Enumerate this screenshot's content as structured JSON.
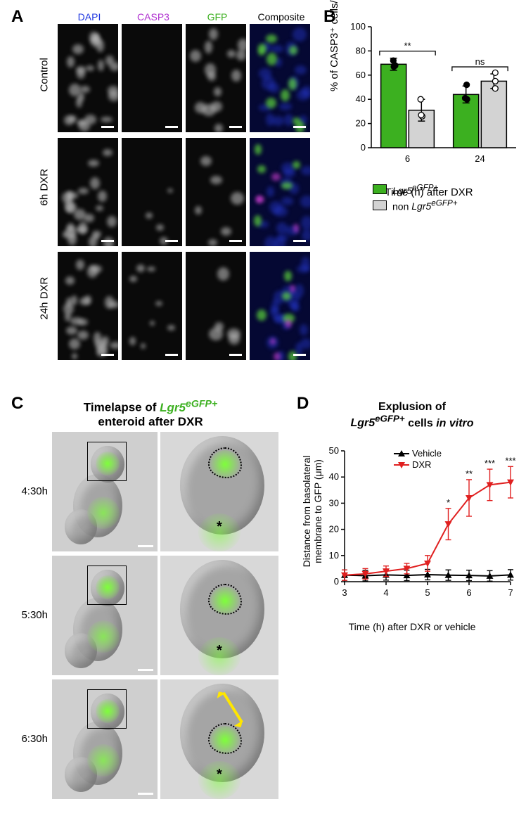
{
  "panelA": {
    "label": "A",
    "col_headers": [
      {
        "text": "DAPI",
        "color": "#2038e0"
      },
      {
        "text": "CASP3",
        "color": "#b030d0"
      },
      {
        "text": "GFP",
        "color": "#3cb020"
      },
      {
        "text": "Composite",
        "color": "#000000"
      }
    ],
    "row_labels": [
      "Control",
      "6h DXR",
      "24h DXR"
    ]
  },
  "panelB": {
    "label": "B",
    "type": "bar",
    "ylabel": "% of CASP3⁺ cells/crypt",
    "xlabel": "Time (h) after DXR",
    "ylim": [
      0,
      100
    ],
    "ytick_step": 20,
    "categories": [
      "6",
      "24"
    ],
    "groups": [
      {
        "name": "Lgr5^eGFP+",
        "display": "Lgr5",
        "italic_sup": "eGFP+",
        "fill": "#3cb020",
        "border": "#000000",
        "values": [
          69,
          44
        ],
        "err": [
          5,
          7
        ],
        "points": [
          [
            68,
            72,
            67
          ],
          [
            41,
            52,
            40
          ]
        ]
      },
      {
        "name": "non Lgr5^eGFP+",
        "display": "non Lgr5",
        "italic_sup": "eGFP+",
        "fill": "#d3d3d3",
        "border": "#000000",
        "values": [
          31,
          55
        ],
        "err": [
          9,
          6
        ],
        "points": [
          [
            26,
            40,
            27
          ],
          [
            49,
            55,
            62
          ]
        ]
      }
    ],
    "sig": [
      {
        "over": "6",
        "label": "**"
      },
      {
        "over": "24",
        "label": "ns"
      }
    ],
    "bar_width": 0.35,
    "background": "#ffffff"
  },
  "panelC": {
    "label": "C",
    "title_parts": [
      {
        "text": "Timelapse of ",
        "color": "#000",
        "style": "bold"
      },
      {
        "text": "Lgr5",
        "color": "#3cb020",
        "style": "bold-italic"
      },
      {
        "text": "eGFP+",
        "color": "#3cb020",
        "style": "bold-italic-sup"
      },
      {
        "text": " enteroid after DXR",
        "color": "#000",
        "style": "bold"
      }
    ],
    "timepoints": [
      "4:30h",
      "5:30h",
      "6:30h"
    ]
  },
  "panelD": {
    "label": "D",
    "type": "line",
    "title_parts": [
      {
        "text": "Explusion of",
        "style": "bold"
      },
      {
        "text": "Lgr5",
        "style": "bold-italic"
      },
      {
        "text": "eGFP+",
        "style": "bold-italic-sup"
      },
      {
        "text": " cells ",
        "style": "bold"
      },
      {
        "text": "in vitro",
        "style": "bold-italic"
      }
    ],
    "ylabel": "Distance from basolateral membrane to GFP (μm)",
    "xlabel": "Time (h) after DXR or vehicle",
    "xlim": [
      3,
      7
    ],
    "xtick_step": 1,
    "ylim": [
      0,
      50
    ],
    "ytick_step": 10,
    "series": [
      {
        "name": "Vehicle",
        "color": "#000000",
        "marker": "triangle",
        "x": [
          3,
          3.5,
          4,
          4.5,
          5,
          5.5,
          6,
          6.5,
          7
        ],
        "y": [
          2.5,
          2.3,
          2.6,
          2.4,
          2.7,
          2.5,
          2.4,
          2.2,
          2.6
        ],
        "err": [
          2,
          2,
          2,
          2,
          2,
          2,
          2,
          2,
          2
        ]
      },
      {
        "name": "DXR",
        "color": "#e02020",
        "marker": "triangle-down",
        "x": [
          3,
          3.5,
          4,
          4.5,
          5,
          5.5,
          6,
          6.5,
          7
        ],
        "y": [
          2.5,
          3,
          4,
          5,
          7,
          22,
          32,
          37,
          38
        ],
        "err": [
          2,
          2,
          2,
          2,
          3,
          6,
          7,
          6,
          6
        ]
      }
    ],
    "sig": [
      {
        "x": 5.5,
        "label": "*"
      },
      {
        "x": 6,
        "label": "**"
      },
      {
        "x": 6.5,
        "label": "***"
      },
      {
        "x": 7,
        "label": "***"
      }
    ],
    "line_width": 2,
    "background": "#ffffff"
  }
}
